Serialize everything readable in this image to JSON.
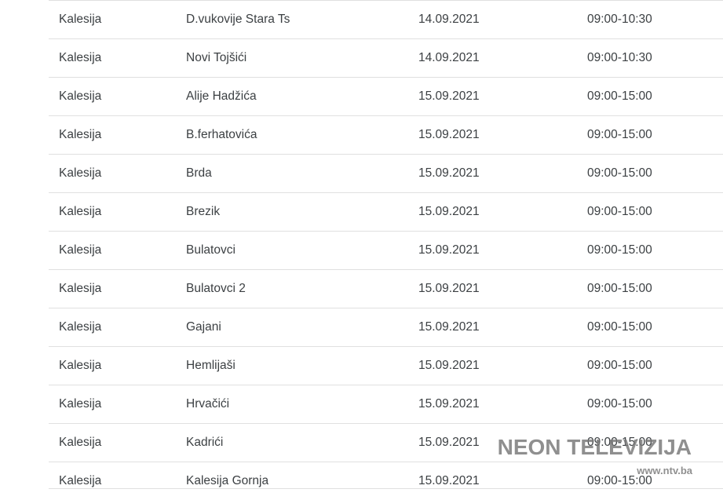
{
  "table": {
    "rows": [
      {
        "municipality": "Kalesija",
        "location": "D.vukovije Stara Ts",
        "date": "14.09.2021",
        "time": "09:00-10:30"
      },
      {
        "municipality": "Kalesija",
        "location": "Novi Tojšići",
        "date": "14.09.2021",
        "time": "09:00-10:30"
      },
      {
        "municipality": "Kalesija",
        "location": "Alije Hadžića",
        "date": "15.09.2021",
        "time": "09:00-15:00"
      },
      {
        "municipality": "Kalesija",
        "location": "B.ferhatovića",
        "date": "15.09.2021",
        "time": "09:00-15:00"
      },
      {
        "municipality": "Kalesija",
        "location": "Brda",
        "date": "15.09.2021",
        "time": "09:00-15:00"
      },
      {
        "municipality": "Kalesija",
        "location": "Brezik",
        "date": "15.09.2021",
        "time": "09:00-15:00"
      },
      {
        "municipality": "Kalesija",
        "location": "Bulatovci",
        "date": "15.09.2021",
        "time": "09:00-15:00"
      },
      {
        "municipality": "Kalesija",
        "location": "Bulatovci 2",
        "date": "15.09.2021",
        "time": "09:00-15:00"
      },
      {
        "municipality": "Kalesija",
        "location": "Gajani",
        "date": "15.09.2021",
        "time": "09:00-15:00"
      },
      {
        "municipality": "Kalesija",
        "location": "Hemlijaši",
        "date": "15.09.2021",
        "time": "09:00-15:00"
      },
      {
        "municipality": "Kalesija",
        "location": "Hrvačići",
        "date": "15.09.2021",
        "time": "09:00-15:00"
      },
      {
        "municipality": "Kalesija",
        "location": "Kadrići",
        "date": "15.09.2021",
        "time": "09:00-15:00"
      },
      {
        "municipality": "Kalesija",
        "location": "Kalesija Gornja",
        "date": "15.09.2021",
        "time": "09:00-15:00"
      }
    ]
  },
  "watermark": {
    "name": "NEON TELEVIZIJA",
    "website": "www.ntv.ba"
  },
  "colors": {
    "row_text": "#3c4043",
    "divider": "#e0e0e0",
    "background": "#ffffff",
    "watermark_text": "#767676",
    "watermark_site_text": "#8a8a8a"
  }
}
